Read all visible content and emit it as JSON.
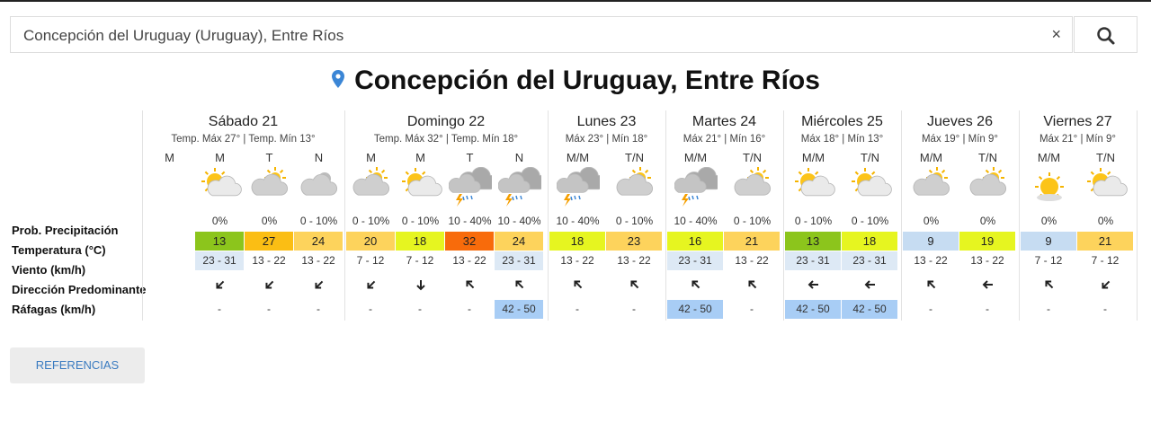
{
  "search": {
    "query": "Concepción del Uruguay (Uruguay), Entre Ríos",
    "clear": "×"
  },
  "title": "Concepción del Uruguay, Entre Ríos",
  "row_labels": [
    "Prob. Precipitación",
    "Temperatura (°C)",
    "Viento (km/h)",
    "Dirección Predominante",
    "Ráfagas (km/h)"
  ],
  "days": [
    {
      "name": "Sábado 21",
      "summary": "Temp. Máx 27° | Temp. Mín 13°",
      "slots": [
        {
          "period": "M"
        },
        {
          "period": "M",
          "precip": "0%",
          "temp": "13",
          "wind": "23 - 31",
          "gusts": "-"
        },
        {
          "period": "T",
          "precip": "0%",
          "temp": "27",
          "wind": "13 - 22",
          "gusts": "-"
        },
        {
          "period": "N",
          "precip": "0 - 10%",
          "temp": "24",
          "wind": "13 - 22",
          "gusts": "-"
        }
      ]
    },
    {
      "name": "Domingo 22",
      "summary": "Temp. Máx 32° | Temp. Mín 18°",
      "slots": [
        {
          "period": "M",
          "precip": "0 - 10%",
          "temp": "20",
          "wind": "7 - 12",
          "gusts": "-"
        },
        {
          "period": "M",
          "precip": "0 - 10%",
          "temp": "18",
          "wind": "7 - 12",
          "gusts": "-"
        },
        {
          "period": "T",
          "precip": "10 - 40%",
          "temp": "32",
          "wind": "13 - 22",
          "gusts": "-"
        },
        {
          "period": "N",
          "precip": "10 - 40%",
          "temp": "24",
          "wind": "23 - 31",
          "gusts": "42 - 50"
        }
      ]
    },
    {
      "name": "Lunes 23",
      "summary": "Máx 23° | Mín 18°",
      "slots": [
        {
          "period": "M/M",
          "precip": "10 - 40%",
          "temp": "18",
          "wind": "13 - 22",
          "gusts": "-"
        },
        {
          "period": "T/N",
          "precip": "0 - 10%",
          "temp": "23",
          "wind": "13 - 22",
          "gusts": "-"
        }
      ]
    },
    {
      "name": "Martes 24",
      "summary": "Máx 21° | Mín 16°",
      "slots": [
        {
          "period": "M/M",
          "precip": "10 - 40%",
          "temp": "16",
          "wind": "23 - 31",
          "gusts": "42 - 50"
        },
        {
          "period": "T/N",
          "precip": "0 - 10%",
          "temp": "21",
          "wind": "13 - 22",
          "gusts": "-"
        }
      ]
    },
    {
      "name": "Miércoles 25",
      "summary": "Máx 18° | Mín 13°",
      "slots": [
        {
          "period": "M/M",
          "precip": "0 - 10%",
          "temp": "13",
          "wind": "23 - 31",
          "gusts": "42 - 50"
        },
        {
          "period": "T/N",
          "precip": "0 - 10%",
          "temp": "18",
          "wind": "23 - 31",
          "gusts": "42 - 50"
        }
      ]
    },
    {
      "name": "Jueves 26",
      "summary": "Máx 19° | Mín 9°",
      "slots": [
        {
          "period": "M/M",
          "precip": "0%",
          "temp": "9",
          "wind": "13 - 22",
          "gusts": "-"
        },
        {
          "period": "T/N",
          "precip": "0%",
          "temp": "19",
          "wind": "13 - 22",
          "gusts": "-"
        }
      ]
    },
    {
      "name": "Viernes 27",
      "summary": "Máx 21° | Mín 9°",
      "slots": [
        {
          "period": "M/M",
          "precip": "0%",
          "temp": "9",
          "wind": "7 - 12",
          "gusts": "-"
        },
        {
          "period": "T/N",
          "precip": "0%",
          "temp": "21",
          "wind": "7 - 12",
          "gusts": "-"
        }
      ]
    }
  ],
  "button": "REFERENCIAS"
}
